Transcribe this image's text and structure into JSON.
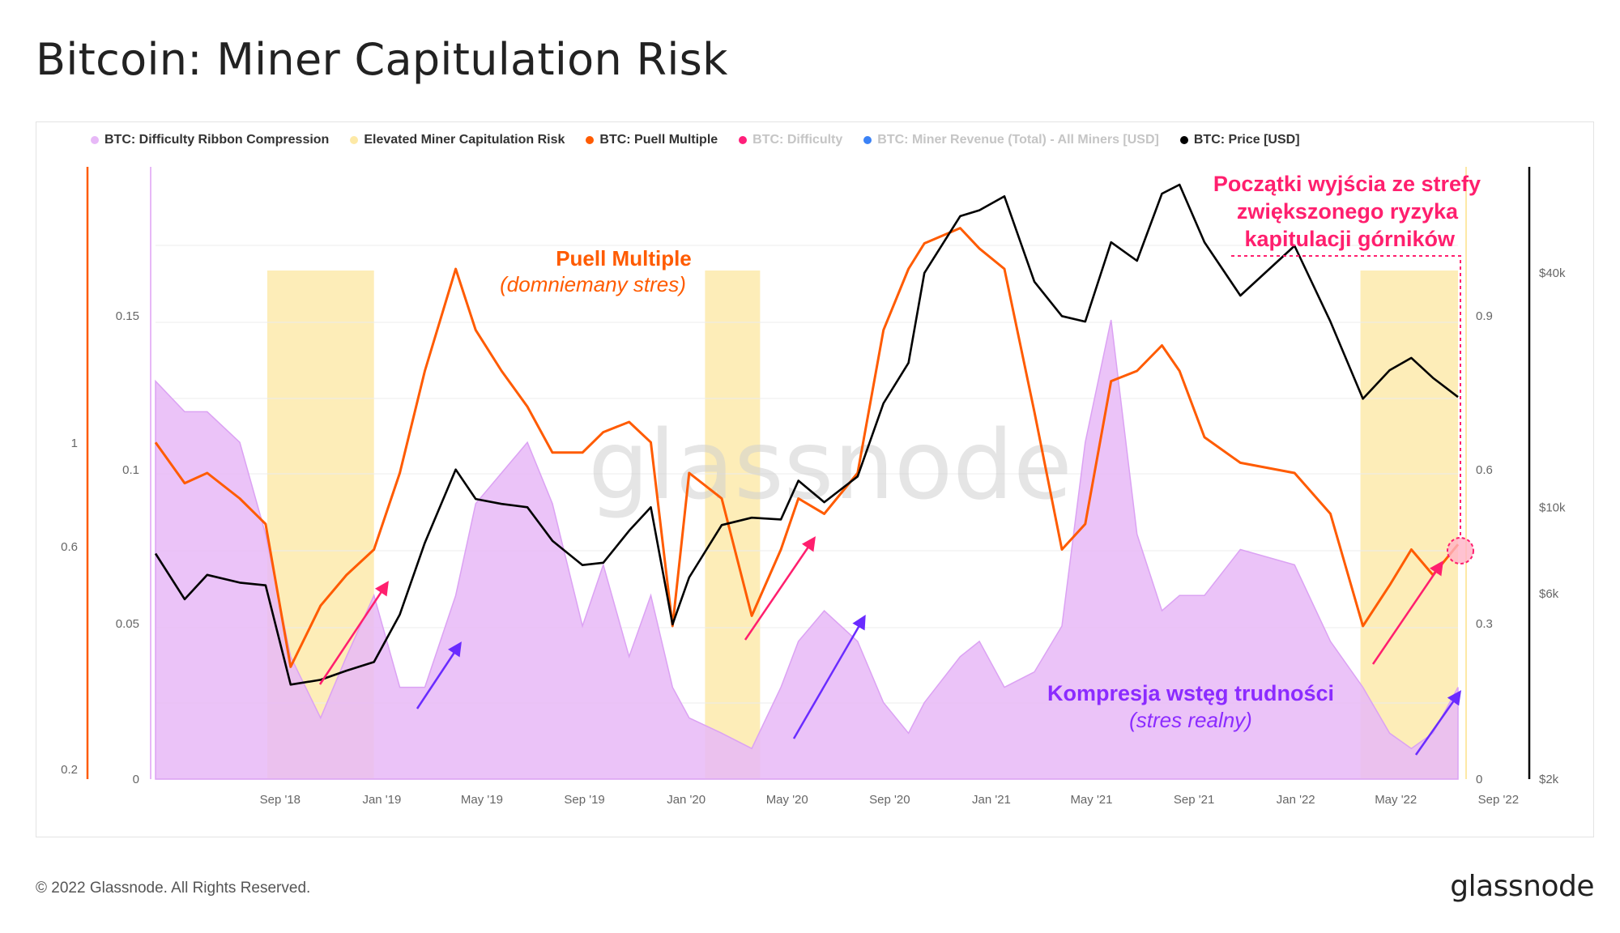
{
  "title": "Bitcoin: Miner Capitulation Risk",
  "legend": [
    {
      "label": "BTC: Difficulty Ribbon Compression",
      "color": "#e7b8f7",
      "active": true
    },
    {
      "label": "Elevated Miner Capitulation Risk",
      "color": "#fde9a6",
      "active": true
    },
    {
      "label": "BTC: Puell Multiple",
      "color": "#ff5b00",
      "active": true
    },
    {
      "label": "BTC: Difficulty",
      "color": "#ff1f7a",
      "active": false
    },
    {
      "label": "BTC: Miner Revenue (Total) - All Miners [USD]",
      "color": "#3b82f6",
      "active": false
    },
    {
      "label": "BTC: Price [USD]",
      "color": "#000000",
      "active": true
    }
  ],
  "watermark": "glassnode",
  "annotations": {
    "puell_title": "Puell Multiple",
    "puell_sub": "(domniemany stres)",
    "exit_line1": "Początki wyjścia ze strefy",
    "exit_line2": "zwiększonego ryzyka",
    "exit_line3": "kapitulacji górników",
    "compression_title": "Kompresja wstęg trudności",
    "compression_sub": "(stres realny)"
  },
  "footer": {
    "copyright": "© 2022 Glassnode. All Rights Reserved.",
    "brand": "glassnode"
  },
  "chart_data": {
    "type": "line",
    "x_ticks": [
      "Sep '18",
      "Jan '19",
      "May '19",
      "Sep '19",
      "Jan '20",
      "May '20",
      "Sep '20",
      "Jan '21",
      "May '21",
      "Sep '21",
      "Jan '22",
      "May '22",
      "Sep '22"
    ],
    "axes": {
      "difficulty_compression": {
        "ticks": [
          "0",
          "0.05",
          "0.1",
          "0.15"
        ],
        "range": [
          0,
          0.2
        ]
      },
      "difficulty_log": {
        "ticks": [
          "0.2",
          "0.6",
          "1"
        ]
      },
      "puell_multiple": {
        "ticks": [
          "0",
          "0.3",
          "0.6",
          "0.9"
        ],
        "range": [
          0,
          1.2
        ]
      },
      "price_log": {
        "ticks": [
          "$2k",
          "$6k",
          "$10k",
          "$40k"
        ],
        "range": [
          2000,
          75000
        ]
      }
    },
    "capitulation_risk_zones": [
      [
        "2018-11-12",
        "2019-03-20"
      ],
      [
        "2020-04-20",
        "2020-06-25"
      ],
      [
        "2022-06-15",
        "2022-10-10"
      ]
    ],
    "series": [
      {
        "name": "BTC: Price [USD]",
        "color": "#000000",
        "axis": "price_log",
        "points": [
          [
            "2018-07-01",
            7600
          ],
          [
            "2018-08-05",
            5800
          ],
          [
            "2018-09-01",
            6700
          ],
          [
            "2018-10-10",
            6400
          ],
          [
            "2018-11-10",
            6300
          ],
          [
            "2018-12-10",
            3500
          ],
          [
            "2019-01-15",
            3600
          ],
          [
            "2019-02-15",
            3800
          ],
          [
            "2019-03-20",
            4000
          ],
          [
            "2019-04-20",
            5300
          ],
          [
            "2019-05-20",
            8100
          ],
          [
            "2019-06-26",
            12500
          ],
          [
            "2019-07-20",
            10500
          ],
          [
            "2019-08-20",
            10200
          ],
          [
            "2019-09-20",
            10000
          ],
          [
            "2019-10-20",
            8200
          ],
          [
            "2019-11-25",
            7100
          ],
          [
            "2019-12-20",
            7200
          ],
          [
            "2020-01-20",
            8700
          ],
          [
            "2020-02-15",
            10000
          ],
          [
            "2020-03-12",
            5000
          ],
          [
            "2020-04-01",
            6600
          ],
          [
            "2020-05-10",
            9000
          ],
          [
            "2020-06-15",
            9400
          ],
          [
            "2020-07-20",
            9300
          ],
          [
            "2020-08-10",
            11700
          ],
          [
            "2020-09-10",
            10300
          ],
          [
            "2020-10-20",
            12000
          ],
          [
            "2020-11-20",
            18500
          ],
          [
            "2020-12-20",
            23500
          ],
          [
            "2021-01-08",
            40000
          ],
          [
            "2021-02-20",
            56000
          ],
          [
            "2021-03-15",
            58000
          ],
          [
            "2021-04-14",
            63000
          ],
          [
            "2021-05-20",
            38000
          ],
          [
            "2021-06-22",
            31000
          ],
          [
            "2021-07-20",
            30000
          ],
          [
            "2021-08-20",
            48000
          ],
          [
            "2021-09-20",
            43000
          ],
          [
            "2021-10-20",
            64000
          ],
          [
            "2021-11-10",
            67500
          ],
          [
            "2021-12-10",
            48000
          ],
          [
            "2022-01-22",
            35000
          ],
          [
            "2022-03-28",
            47000
          ],
          [
            "2022-05-10",
            30000
          ],
          [
            "2022-06-18",
            19000
          ],
          [
            "2022-07-20",
            22500
          ],
          [
            "2022-08-15",
            24200
          ],
          [
            "2022-09-10",
            21500
          ],
          [
            "2022-10-10",
            19200
          ]
        ]
      },
      {
        "name": "BTC: Puell Multiple",
        "color": "#ff5b00",
        "axis": "puell_multiple",
        "points": [
          [
            "2018-07-01",
            0.66
          ],
          [
            "2018-08-05",
            0.58
          ],
          [
            "2018-09-01",
            0.6
          ],
          [
            "2018-10-10",
            0.55
          ],
          [
            "2018-11-10",
            0.5
          ],
          [
            "2018-12-10",
            0.22
          ],
          [
            "2019-01-15",
            0.34
          ],
          [
            "2019-02-15",
            0.4
          ],
          [
            "2019-03-20",
            0.45
          ],
          [
            "2019-04-20",
            0.6
          ],
          [
            "2019-05-20",
            0.8
          ],
          [
            "2019-06-26",
            1.0
          ],
          [
            "2019-07-20",
            0.88
          ],
          [
            "2019-08-20",
            0.8
          ],
          [
            "2019-09-20",
            0.73
          ],
          [
            "2019-10-20",
            0.64
          ],
          [
            "2019-11-25",
            0.64
          ],
          [
            "2019-12-20",
            0.68
          ],
          [
            "2020-01-20",
            0.7
          ],
          [
            "2020-02-15",
            0.66
          ],
          [
            "2020-03-12",
            0.3
          ],
          [
            "2020-04-01",
            0.6
          ],
          [
            "2020-05-10",
            0.55
          ],
          [
            "2020-06-15",
            0.32
          ],
          [
            "2020-07-20",
            0.45
          ],
          [
            "2020-08-10",
            0.55
          ],
          [
            "2020-09-10",
            0.52
          ],
          [
            "2020-10-20",
            0.6
          ],
          [
            "2020-11-20",
            0.88
          ],
          [
            "2020-12-20",
            1.0
          ],
          [
            "2021-01-08",
            1.05
          ],
          [
            "2021-02-20",
            1.08
          ],
          [
            "2021-03-15",
            1.04
          ],
          [
            "2021-04-14",
            1.0
          ],
          [
            "2021-05-20",
            0.72
          ],
          [
            "2021-06-22",
            0.45
          ],
          [
            "2021-07-20",
            0.5
          ],
          [
            "2021-08-20",
            0.78
          ],
          [
            "2021-09-20",
            0.8
          ],
          [
            "2021-10-20",
            0.85
          ],
          [
            "2021-11-10",
            0.8
          ],
          [
            "2021-12-10",
            0.67
          ],
          [
            "2022-01-22",
            0.62
          ],
          [
            "2022-03-28",
            0.6
          ],
          [
            "2022-05-10",
            0.52
          ],
          [
            "2022-06-18",
            0.3
          ],
          [
            "2022-07-20",
            0.38
          ],
          [
            "2022-08-15",
            0.45
          ],
          [
            "2022-09-10",
            0.4
          ],
          [
            "2022-10-10",
            0.46
          ]
        ]
      },
      {
        "name": "BTC: Difficulty Ribbon Compression",
        "color": "#e7b8f7",
        "axis": "difficulty_compression",
        "points": [
          [
            "2018-07-01",
            0.13
          ],
          [
            "2018-08-05",
            0.12
          ],
          [
            "2018-09-01",
            0.12
          ],
          [
            "2018-10-10",
            0.11
          ],
          [
            "2018-11-10",
            0.08
          ],
          [
            "2018-12-10",
            0.04
          ],
          [
            "2019-01-15",
            0.02
          ],
          [
            "2019-02-15",
            0.04
          ],
          [
            "2019-03-20",
            0.06
          ],
          [
            "2019-04-20",
            0.03
          ],
          [
            "2019-05-20",
            0.03
          ],
          [
            "2019-06-26",
            0.06
          ],
          [
            "2019-07-20",
            0.09
          ],
          [
            "2019-08-20",
            0.1
          ],
          [
            "2019-09-20",
            0.11
          ],
          [
            "2019-10-20",
            0.09
          ],
          [
            "2019-11-25",
            0.05
          ],
          [
            "2019-12-20",
            0.07
          ],
          [
            "2020-01-20",
            0.04
          ],
          [
            "2020-02-15",
            0.06
          ],
          [
            "2020-03-12",
            0.03
          ],
          [
            "2020-04-01",
            0.02
          ],
          [
            "2020-05-10",
            0.015
          ],
          [
            "2020-06-15",
            0.01
          ],
          [
            "2020-07-20",
            0.03
          ],
          [
            "2020-08-10",
            0.045
          ],
          [
            "2020-09-10",
            0.055
          ],
          [
            "2020-10-20",
            0.045
          ],
          [
            "2020-11-20",
            0.025
          ],
          [
            "2020-12-20",
            0.015
          ],
          [
            "2021-01-08",
            0.025
          ],
          [
            "2021-02-20",
            0.04
          ],
          [
            "2021-03-15",
            0.045
          ],
          [
            "2021-04-14",
            0.03
          ],
          [
            "2021-05-20",
            0.035
          ],
          [
            "2021-06-22",
            0.05
          ],
          [
            "2021-07-20",
            0.11
          ],
          [
            "2021-08-20",
            0.15
          ],
          [
            "2021-09-20",
            0.08
          ],
          [
            "2021-10-20",
            0.055
          ],
          [
            "2021-11-10",
            0.06
          ],
          [
            "2021-12-10",
            0.06
          ],
          [
            "2022-01-22",
            0.075
          ],
          [
            "2022-03-28",
            0.07
          ],
          [
            "2022-05-10",
            0.045
          ],
          [
            "2022-06-18",
            0.03
          ],
          [
            "2022-07-20",
            0.015
          ],
          [
            "2022-08-15",
            0.01
          ],
          [
            "2022-09-10",
            0.015
          ],
          [
            "2022-10-10",
            0.03
          ]
        ]
      }
    ]
  }
}
